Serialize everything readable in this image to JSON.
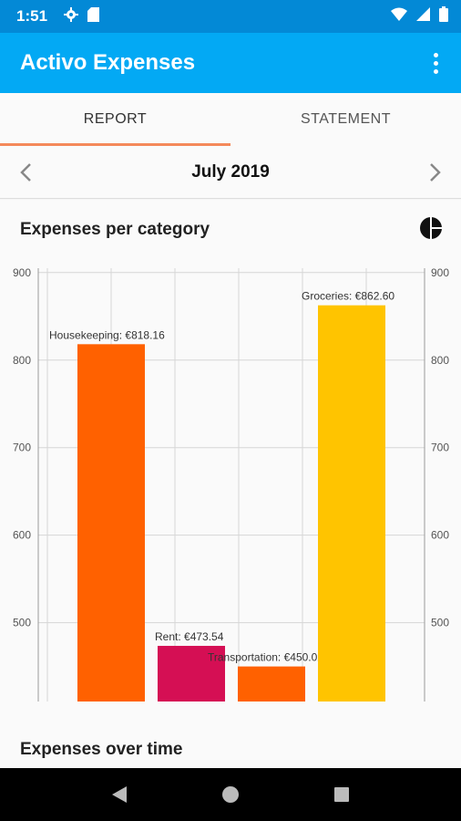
{
  "status": {
    "time": "1:51"
  },
  "appbar": {
    "title": "Activo Expenses"
  },
  "tabs": [
    {
      "label": "REPORT",
      "active": true
    },
    {
      "label": "STATEMENT",
      "active": false
    }
  ],
  "month": {
    "label": "July 2019"
  },
  "card": {
    "heading": "Expenses per category"
  },
  "section2": {
    "heading": "Expenses over time"
  },
  "colors": {
    "statusbar": "#0389d6",
    "appbar": "#03a9f4",
    "tab_indicator": "#f4895a"
  },
  "chart_data": {
    "type": "bar",
    "categories": [
      "Housekeeping",
      "Rent",
      "Transportation",
      "Groceries"
    ],
    "values": [
      818.16,
      473.54,
      450.02,
      862.6
    ],
    "data_labels": [
      "Housekeeping: €818.16",
      "Rent: €473.54",
      "Transportation: €450.02",
      "Groceries: €862.60"
    ],
    "colors": [
      "#ff6100",
      "#d50f54",
      "#ff6100",
      "#ffc400"
    ],
    "ylim": [
      410,
      905
    ],
    "yticks": [
      500,
      600,
      700,
      800,
      900
    ],
    "ytick_labels": [
      "500",
      "600",
      "700",
      "800",
      "900"
    ],
    "dual_y_axis": true,
    "grid": true
  }
}
